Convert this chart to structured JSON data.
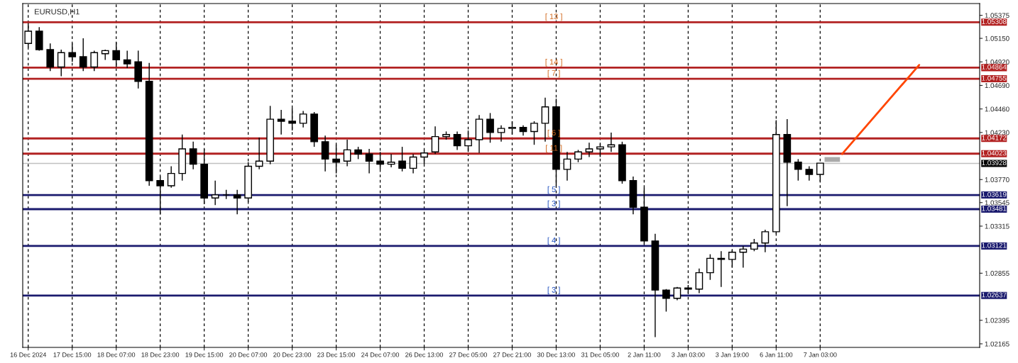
{
  "chart_data": {
    "type": "candlestick",
    "title": "EURUSD,H1",
    "categories": [
      "16 Dec 2024",
      null,
      null,
      null,
      "17 Dec 15:00",
      null,
      null,
      null,
      "18 Dec 07:00",
      null,
      null,
      null,
      "18 Dec 23:00",
      null,
      null,
      null,
      "19 Dec 15:00",
      null,
      null,
      null,
      "20 Dec 07:00",
      null,
      null,
      null,
      "20 Dec 23:00",
      null,
      null,
      null,
      "23 Dec 15:00",
      null,
      null,
      null,
      "24 Dec 07:00",
      null,
      null,
      null,
      "26 Dec 13:00",
      null,
      null,
      null,
      "27 Dec 05:00",
      null,
      null,
      null,
      "27 Dec 21:00",
      null,
      null,
      null,
      "30 Dec 13:00",
      null,
      null,
      null,
      "31 Dec 05:00",
      null,
      null,
      null,
      "2 Jan 11:00",
      null,
      null,
      null,
      "3 Jan 03:00",
      null,
      null,
      null,
      "3 Jan 19:00",
      null,
      null,
      null,
      "6 Jan 11:00",
      null,
      null,
      null,
      "7 Jan 03:00",
      null,
      null,
      null,
      null,
      null,
      null,
      null,
      null,
      null,
      null,
      null,
      null,
      null,
      null
    ],
    "color": "#000000",
    "ohlc": [
      [
        1.051,
        1.053,
        1.0506,
        1.0522
      ],
      [
        1.0522,
        1.0526,
        1.0503,
        1.0504
      ],
      [
        1.0504,
        1.051,
        1.0483,
        1.0487
      ],
      [
        1.0487,
        1.0504,
        1.0478,
        1.0501
      ],
      [
        1.0501,
        1.051,
        1.0492,
        1.0497
      ],
      [
        1.0497,
        1.0515,
        1.0483,
        1.0487
      ],
      [
        1.0487,
        1.0503,
        1.0483,
        1.0501
      ],
      [
        1.05,
        1.0504,
        1.0494,
        1.0503
      ],
      [
        1.0503,
        1.0511,
        1.0487,
        1.0494
      ],
      [
        1.0494,
        1.0503,
        1.0486,
        1.049
      ],
      [
        1.0492,
        1.0503,
        1.0466,
        1.0473
      ],
      [
        1.0473,
        1.0491,
        1.0371,
        1.0376
      ],
      [
        1.0376,
        1.038,
        1.0343,
        1.0371
      ],
      [
        1.0371,
        1.039,
        1.0369,
        1.0383
      ],
      [
        1.0383,
        1.0421,
        1.0376,
        1.0407
      ],
      [
        1.0407,
        1.0414,
        1.0387,
        1.0392
      ],
      [
        1.0392,
        1.0407,
        1.0353,
        1.0359
      ],
      [
        1.0359,
        1.0376,
        1.0352,
        1.0362
      ],
      [
        1.0362,
        1.0367,
        1.0358,
        1.0362
      ],
      [
        1.0362,
        1.0367,
        1.0343,
        1.0359
      ],
      [
        1.0359,
        1.0394,
        1.0355,
        1.039
      ],
      [
        1.039,
        1.0418,
        1.0387,
        1.0395
      ],
      [
        1.0395,
        1.0449,
        1.0392,
        1.0436
      ],
      [
        1.0436,
        1.0445,
        1.0421,
        1.0434
      ],
      [
        1.0434,
        1.0447,
        1.0425,
        1.0432
      ],
      [
        1.0432,
        1.0444,
        1.0428,
        1.0441
      ],
      [
        1.0441,
        1.0443,
        1.0409,
        1.0414
      ],
      [
        1.0414,
        1.042,
        1.0385,
        1.0397
      ],
      [
        1.0397,
        1.0411,
        1.0383,
        1.0394
      ],
      [
        1.0395,
        1.0416,
        1.039,
        1.0406
      ],
      [
        1.0406,
        1.0409,
        1.0397,
        1.0402
      ],
      [
        1.0402,
        1.0407,
        1.0383,
        1.0395
      ],
      [
        1.0395,
        1.0404,
        1.0387,
        1.0392
      ],
      [
        1.0392,
        1.0402,
        1.0389,
        1.0394
      ],
      [
        1.0395,
        1.0409,
        1.0385,
        1.0388
      ],
      [
        1.0388,
        1.0402,
        1.0383,
        1.0399
      ],
      [
        1.0399,
        1.0406,
        1.0392,
        1.0403
      ],
      [
        1.0404,
        1.0429,
        1.0402,
        1.0419
      ],
      [
        1.0419,
        1.0424,
        1.0416,
        1.0421
      ],
      [
        1.0421,
        1.0424,
        1.0406,
        1.041
      ],
      [
        1.041,
        1.0425,
        1.0404,
        1.0416
      ],
      [
        1.0416,
        1.044,
        1.0403,
        1.0436
      ],
      [
        1.0436,
        1.0442,
        1.0413,
        1.0423
      ],
      [
        1.0423,
        1.043,
        1.0414,
        1.0427
      ],
      [
        1.0427,
        1.0434,
        1.0421,
        1.0428
      ],
      [
        1.0428,
        1.043,
        1.042,
        1.0424
      ],
      [
        1.0424,
        1.0434,
        1.0411,
        1.0432
      ],
      [
        1.0432,
        1.0457,
        1.0414,
        1.0448
      ],
      [
        1.0448,
        1.0456,
        1.0371,
        1.0387
      ],
      [
        1.0387,
        1.0404,
        1.0376,
        1.0397
      ],
      [
        1.0397,
        1.0406,
        1.0394,
        1.0404
      ],
      [
        1.0404,
        1.0413,
        1.0399,
        1.0407
      ],
      [
        1.0407,
        1.0412,
        1.0399,
        1.0409
      ],
      [
        1.0409,
        1.0423,
        1.0404,
        1.0411
      ],
      [
        1.0411,
        1.0414,
        1.0373,
        1.0376
      ],
      [
        1.0376,
        1.038,
        1.0343,
        1.035
      ],
      [
        1.035,
        1.0369,
        1.0314,
        1.0317
      ],
      [
        1.0317,
        1.0324,
        1.0223,
        1.0269
      ],
      [
        1.0269,
        1.027,
        1.0248,
        1.0261
      ],
      [
        1.0261,
        1.0272,
        1.0259,
        1.0271
      ],
      [
        1.0271,
        1.0274,
        1.0266,
        1.027
      ],
      [
        1.027,
        1.029,
        1.0266,
        1.0286
      ],
      [
        1.0286,
        1.0304,
        1.0279,
        1.03
      ],
      [
        1.03,
        1.0307,
        1.0272,
        1.0299
      ],
      [
        1.0299,
        1.0308,
        1.0291,
        1.0306
      ],
      [
        1.0306,
        1.0312,
        1.0291,
        1.0309
      ],
      [
        1.0309,
        1.0319,
        1.0307,
        1.0315
      ],
      [
        1.0315,
        1.0328,
        1.0306,
        1.0326
      ],
      [
        1.0326,
        1.0435,
        1.0324,
        1.0421
      ],
      [
        1.0421,
        1.0436,
        1.0351,
        1.0394
      ],
      [
        1.0394,
        1.0397,
        1.0376,
        1.0387
      ],
      [
        1.0387,
        1.039,
        1.0376,
        1.0382
      ],
      [
        1.0382,
        1.0393,
        1.0375,
        1.0393
      ],
      null,
      null,
      null,
      null,
      null,
      null,
      null,
      null,
      null,
      null,
      null,
      null,
      null,
      null
    ],
    "series": [
      {
        "type": "line",
        "color": "#ff4500",
        "values": [
          null,
          null,
          null,
          null,
          null,
          null,
          null,
          null,
          null,
          null,
          null,
          null,
          null,
          null,
          null,
          null,
          null,
          null,
          null,
          null,
          null,
          null,
          null,
          null,
          null,
          null,
          null,
          null,
          null,
          null,
          null,
          null,
          null,
          null,
          null,
          null,
          null,
          null,
          null,
          null,
          null,
          null,
          null,
          null,
          null,
          null,
          null,
          null,
          null,
          null,
          null,
          null,
          null,
          null,
          null,
          null,
          null,
          null,
          null,
          null,
          null,
          null,
          null,
          null,
          null,
          null,
          null,
          null,
          null,
          null,
          null,
          null,
          null,
          null,
          1.0402,
          null,
          null,
          null,
          null,
          null,
          null,
          1.0489,
          null,
          null,
          null,
          null,
          null
        ]
      }
    ],
    "ylim": [
      1.0213,
      1.0549
    ],
    "yticks": [
      1.02165,
      1.02395,
      1.02855,
      1.03315,
      1.03545,
      {
        "value": 1.0377,
        "label": "1.03770"
      },
      {
        "value": 1.0423,
        "label": "1.04230"
      },
      {
        "value": 1.0446,
        "label": "1.04460"
      },
      {
        "value": 1.0469,
        "label": "1.04690"
      },
      {
        "value": 1.0492,
        "label": "1.04920"
      },
      {
        "value": 1.0515,
        "label": "1.05150"
      },
      1.05375
    ],
    "ref_lines": [
      {
        "axis": "y",
        "value": 1.05308,
        "label": "1.05308",
        "color": "#b22222"
      },
      {
        "axis": "y",
        "value": 1.04864,
        "label": "1.04864",
        "color": "#b22222"
      },
      {
        "axis": "y",
        "value": 1.04755,
        "label": "1.04755",
        "color": "#b22222"
      },
      {
        "axis": "y",
        "value": 1.04172,
        "label": "1.04172",
        "color": "#b22222"
      },
      {
        "axis": "y",
        "value": 1.04023,
        "label": "1.04023",
        "color": "#b22222"
      },
      {
        "axis": "y",
        "value": 1.03928,
        "label": "1.03928",
        "color": "#c0c0c0"
      },
      {
        "axis": "y",
        "value": 1.03619,
        "label": "1.03619",
        "color": "#1a1a6e"
      },
      {
        "axis": "y",
        "value": 1.03481,
        "label": "1.03481",
        "color": "#1a1a6e"
      },
      {
        "axis": "y",
        "value": 1.03121,
        "label": "1.03121",
        "color": "#1a1a6e"
      },
      {
        "axis": "y",
        "value": 1.02637,
        "label": "1.02637",
        "color": "#1a1a6e"
      }
    ],
    "annotations": [
      {
        "text": "[ 13 ]",
        "y": 1.05308
      },
      {
        "text": "[ 14 ]",
        "y": 1.04864
      },
      {
        "text": "[ 7 ]",
        "y": 1.04755
      },
      {
        "text": "[ 6 ]",
        "y": 1.04172
      },
      {
        "text": "[ 11 ]",
        "y": 1.04023
      },
      {
        "text": "[ 5 ]",
        "y": 1.03619
      },
      {
        "text": "[ 3 ]",
        "y": 1.03481
      },
      {
        "text": "[ 4 ]",
        "y": 1.03121
      },
      {
        "text": "[ 3 ]",
        "y": 1.02637
      }
    ],
    "grid": "x"
  }
}
